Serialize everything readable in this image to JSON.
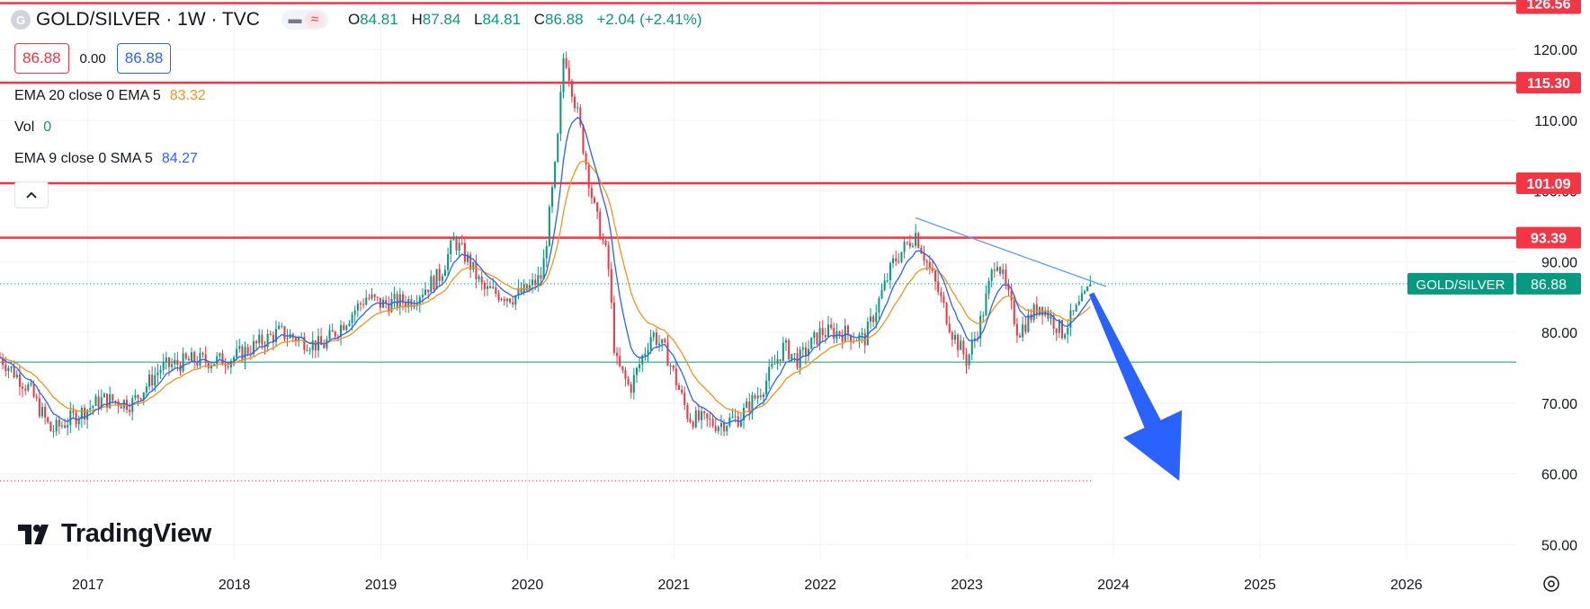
{
  "header": {
    "logo_letter": "G",
    "symbol_title": "GOLD/SILVER · 1W · TVC",
    "ohlc": [
      {
        "label": "O",
        "value": "84.81"
      },
      {
        "label": "H",
        "value": "87.84"
      },
      {
        "label": "L",
        "value": "84.81"
      },
      {
        "label": "C",
        "value": "86.88"
      }
    ],
    "change": "+2.04 (+2.41%)",
    "bid": "86.88",
    "spread": "0.00",
    "ask": "86.88"
  },
  "indicators": [
    {
      "label": "EMA 20 close 0 EMA 5",
      "value": "83.32",
      "color": "#f7931a"
    },
    {
      "label": "Vol",
      "value": "0",
      "color": "#089981"
    },
    {
      "label": "EMA 9 close 0 SMA 5",
      "value": "84.27",
      "color": "#2962ff"
    }
  ],
  "branding": {
    "name": "TradingView"
  },
  "chart_data": {
    "type": "candlestick",
    "symbol_label": "GOLD/SILVER",
    "last_price": "86.88",
    "y_axis": {
      "range": [
        48,
        127
      ],
      "ticks": [
        "50.00",
        "60.00",
        "70.00",
        "80.00",
        "90.00",
        "100.00",
        "110.00",
        "120.00"
      ]
    },
    "x_axis": {
      "range": [
        2016.4,
        2026.75
      ],
      "ticks": [
        {
          "x": 2017,
          "label": "2017"
        },
        {
          "x": 2018,
          "label": "2018"
        },
        {
          "x": 2019,
          "label": "2019"
        },
        {
          "x": 2020,
          "label": "2020"
        },
        {
          "x": 2021,
          "label": "2021"
        },
        {
          "x": 2022,
          "label": "2022"
        },
        {
          "x": 2023,
          "label": "2023"
        },
        {
          "x": 2024,
          "label": "2024"
        },
        {
          "x": 2025,
          "label": "2025"
        },
        {
          "x": 2026,
          "label": "2026"
        }
      ]
    },
    "horizontal_levels": [
      {
        "value": 126.56,
        "label": "126.56",
        "color": "#f23645"
      },
      {
        "value": 115.3,
        "label": "115.30",
        "color": "#f23645"
      },
      {
        "value": 101.09,
        "label": "101.09",
        "color": "#f23645"
      },
      {
        "value": 93.39,
        "label": "93.39",
        "color": "#f23645"
      }
    ],
    "support_line": {
      "value": 75.8,
      "color": "#089981"
    },
    "dotted_lines": [
      {
        "value": 86.88,
        "color": "#089981"
      },
      {
        "value": 59.0,
        "color": "#f23645"
      }
    ],
    "trendline": {
      "points": [
        [
          2022.65,
          96.2
        ],
        [
          2023.95,
          86.5
        ]
      ],
      "color": "#5b9cf6"
    },
    "forecast_arrow": {
      "from": [
        2023.85,
        85.5
      ],
      "to": [
        2024.45,
        59.0
      ],
      "color": "#2962ff"
    },
    "price_anchors": [
      [
        2016.4,
        76.5
      ],
      [
        2016.6,
        72.0
      ],
      [
        2016.75,
        66.0
      ],
      [
        2016.9,
        68.0
      ],
      [
        2017.1,
        70.5
      ],
      [
        2017.3,
        70.0
      ],
      [
        2017.5,
        75.0
      ],
      [
        2017.7,
        76.0
      ],
      [
        2017.9,
        76.0
      ],
      [
        2018.0,
        76.5
      ],
      [
        2018.3,
        80.0
      ],
      [
        2018.6,
        78.0
      ],
      [
        2018.9,
        85.0
      ],
      [
        2019.0,
        84.0
      ],
      [
        2019.2,
        84.5
      ],
      [
        2019.4,
        88.0
      ],
      [
        2019.5,
        93.0
      ],
      [
        2019.6,
        90.0
      ],
      [
        2019.7,
        86.0
      ],
      [
        2019.9,
        85.0
      ],
      [
        2020.0,
        86.0
      ],
      [
        2020.1,
        88.0
      ],
      [
        2020.2,
        105.0
      ],
      [
        2020.25,
        120.0
      ],
      [
        2020.35,
        110.0
      ],
      [
        2020.45,
        98.0
      ],
      [
        2020.55,
        90.0
      ],
      [
        2020.6,
        76.0
      ],
      [
        2020.7,
        72.0
      ],
      [
        2020.85,
        80.0
      ],
      [
        2020.95,
        77.0
      ],
      [
        2021.1,
        68.0
      ],
      [
        2021.3,
        67.0
      ],
      [
        2021.45,
        68.0
      ],
      [
        2021.6,
        72.0
      ],
      [
        2021.75,
        78.0
      ],
      [
        2021.85,
        76.0
      ],
      [
        2022.0,
        80.0
      ],
      [
        2022.15,
        80.0
      ],
      [
        2022.3,
        79.0
      ],
      [
        2022.5,
        90.0
      ],
      [
        2022.65,
        94.0
      ],
      [
        2022.8,
        86.0
      ],
      [
        2022.9,
        80.0
      ],
      [
        2023.0,
        76.0
      ],
      [
        2023.1,
        82.0
      ],
      [
        2023.2,
        91.0
      ],
      [
        2023.35,
        80.0
      ],
      [
        2023.5,
        84.0
      ],
      [
        2023.65,
        80.0
      ],
      [
        2023.8,
        84.8
      ],
      [
        2023.85,
        86.88
      ]
    ],
    "ema20_color": "#f7931a",
    "ema9_color": "#2962ff",
    "up_color": "#089981",
    "down_color": "#f23645"
  }
}
